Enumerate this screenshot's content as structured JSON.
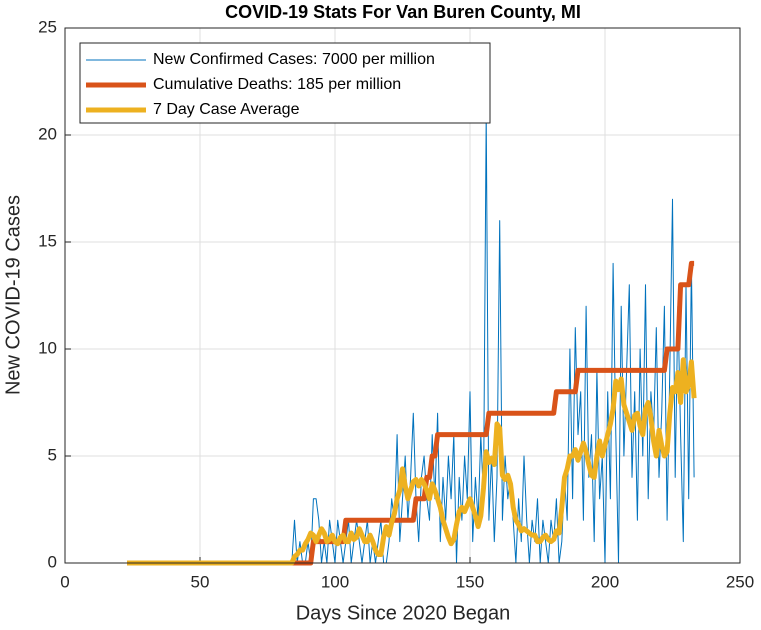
{
  "chart_data": {
    "type": "line",
    "title": "COVID-19 Stats For Van Buren County, MI",
    "x_label": "Days Since 2020 Began",
    "y_label": "New COVID-19 Cases",
    "xlim": [
      0,
      250
    ],
    "xticks": [
      0,
      50,
      100,
      150,
      200,
      250
    ],
    "ylim": [
      0,
      25
    ],
    "yticks": [
      0,
      5,
      10,
      15,
      20,
      25
    ],
    "grid": true,
    "legend": "upper left",
    "x": [
      23,
      24,
      25,
      26,
      27,
      28,
      29,
      30,
      31,
      32,
      33,
      34,
      35,
      36,
      37,
      38,
      39,
      40,
      41,
      42,
      43,
      44,
      45,
      46,
      47,
      48,
      49,
      50,
      51,
      52,
      53,
      54,
      55,
      56,
      57,
      58,
      59,
      60,
      61,
      62,
      63,
      64,
      65,
      66,
      67,
      68,
      69,
      70,
      71,
      72,
      73,
      74,
      75,
      76,
      77,
      78,
      79,
      80,
      81,
      82,
      83,
      84,
      85,
      86,
      87,
      88,
      89,
      90,
      91,
      92,
      93,
      94,
      95,
      96,
      97,
      98,
      99,
      100,
      101,
      102,
      103,
      104,
      105,
      106,
      107,
      108,
      109,
      110,
      111,
      112,
      113,
      114,
      115,
      116,
      117,
      118,
      119,
      120,
      121,
      122,
      123,
      124,
      125,
      126,
      127,
      128,
      129,
      130,
      131,
      132,
      133,
      134,
      135,
      136,
      137,
      138,
      139,
      140,
      141,
      142,
      143,
      144,
      145,
      146,
      147,
      148,
      149,
      150,
      151,
      152,
      153,
      154,
      155,
      156,
      157,
      158,
      159,
      160,
      161,
      162,
      163,
      164,
      165,
      166,
      167,
      168,
      169,
      170,
      171,
      172,
      173,
      174,
      175,
      176,
      177,
      178,
      179,
      180,
      181,
      182,
      183,
      184,
      185,
      186,
      187,
      188,
      189,
      190,
      191,
      192,
      193,
      194,
      195,
      196,
      197,
      198,
      199,
      200,
      201,
      202,
      203,
      204,
      205,
      206,
      207,
      208,
      209,
      210,
      211,
      212,
      213,
      214,
      215,
      216,
      217,
      218,
      219,
      220,
      221,
      222,
      223,
      224,
      225,
      226,
      227,
      228,
      229,
      230,
      231,
      232,
      233
    ],
    "series": [
      {
        "name": "New Confirmed Cases: 7000 per million",
        "color": "#0072bd",
        "line_width": 1,
        "values": [
          0,
          0,
          0,
          0,
          0,
          0,
          0,
          0,
          0,
          0,
          0,
          0,
          0,
          0,
          0,
          0,
          0,
          0,
          0,
          0,
          0,
          0,
          0,
          0,
          0,
          0,
          0,
          0,
          0,
          0,
          0,
          0,
          0,
          0,
          0,
          0,
          0,
          0,
          0,
          0,
          0,
          0,
          0,
          0,
          0,
          0,
          0,
          0,
          0,
          0,
          0,
          0,
          0,
          0,
          0,
          0,
          0,
          0,
          0,
          0,
          0,
          0,
          2,
          0,
          1,
          0,
          0,
          1,
          0,
          3,
          3,
          2,
          0,
          1,
          0,
          2,
          1,
          0,
          2,
          1,
          0,
          1,
          2,
          0,
          1,
          2,
          1,
          0,
          1,
          2,
          0,
          1,
          0,
          1,
          2,
          0,
          0,
          1,
          3,
          2,
          6,
          1,
          3,
          5,
          2,
          4,
          7,
          3,
          1,
          4,
          5,
          3,
          2,
          6,
          3,
          7,
          1,
          4,
          2,
          5,
          3,
          6,
          0,
          4,
          2,
          5,
          3,
          8,
          1,
          4,
          2,
          6,
          3,
          21,
          2,
          5,
          1,
          4,
          16,
          2,
          5,
          3,
          4,
          2,
          0,
          3,
          1,
          5,
          2,
          0,
          2,
          1,
          3,
          0,
          2,
          1,
          0,
          2,
          1,
          3,
          0,
          1,
          4,
          2,
          10,
          3,
          11,
          6,
          8,
          2,
          12,
          4,
          6,
          1,
          9,
          3,
          5,
          0,
          8,
          3,
          14,
          6,
          0,
          12,
          5,
          9,
          13,
          4,
          8,
          2,
          10,
          5,
          13,
          3,
          8,
          6,
          11,
          4,
          7,
          12,
          2,
          9,
          17,
          4,
          12,
          6,
          1,
          13,
          3,
          14,
          4
        ]
      },
      {
        "name": "Cumulative Deaths: 185 per million",
        "color": "#d95319",
        "line_width": 5,
        "values": [
          0,
          0,
          0,
          0,
          0,
          0,
          0,
          0,
          0,
          0,
          0,
          0,
          0,
          0,
          0,
          0,
          0,
          0,
          0,
          0,
          0,
          0,
          0,
          0,
          0,
          0,
          0,
          0,
          0,
          0,
          0,
          0,
          0,
          0,
          0,
          0,
          0,
          0,
          0,
          0,
          0,
          0,
          0,
          0,
          0,
          0,
          0,
          0,
          0,
          0,
          0,
          0,
          0,
          0,
          0,
          0,
          0,
          0,
          0,
          0,
          0,
          0,
          0,
          0,
          0,
          0,
          0,
          0,
          0,
          1,
          1,
          1,
          1,
          1,
          1,
          1,
          1,
          1,
          1,
          1,
          1,
          2,
          2,
          2,
          2,
          2,
          2,
          2,
          2,
          2,
          2,
          2,
          2,
          2,
          2,
          2,
          2,
          2,
          2,
          2,
          2,
          2,
          2,
          2,
          2,
          2,
          2,
          3,
          3,
          3,
          3,
          4,
          4,
          5,
          5,
          6,
          6,
          6,
          6,
          6,
          6,
          6,
          6,
          6,
          6,
          6,
          6,
          6,
          6,
          6,
          6,
          6,
          6,
          6,
          7,
          7,
          7,
          7,
          7,
          7,
          7,
          7,
          7,
          7,
          7,
          7,
          7,
          7,
          7,
          7,
          7,
          7,
          7,
          7,
          7,
          7,
          7,
          7,
          7,
          8,
          8,
          8,
          8,
          8,
          8,
          8,
          8,
          9,
          9,
          9,
          9,
          9,
          9,
          9,
          9,
          9,
          9,
          9,
          9,
          9,
          9,
          9,
          9,
          9,
          9,
          9,
          9,
          9,
          9,
          9,
          9,
          9,
          9,
          9,
          9,
          9,
          9,
          9,
          9,
          9,
          10,
          10,
          10,
          10,
          10,
          13,
          13,
          13,
          13,
          14,
          14
        ]
      },
      {
        "name": "7 Day Case Average",
        "color": "#edb120",
        "line_width": 5,
        "values": [
          0,
          0,
          0,
          0,
          0,
          0,
          0,
          0,
          0,
          0,
          0,
          0,
          0,
          0,
          0,
          0,
          0,
          0,
          0,
          0,
          0,
          0,
          0,
          0,
          0,
          0,
          0,
          0,
          0,
          0,
          0,
          0,
          0,
          0,
          0,
          0,
          0,
          0,
          0,
          0,
          0,
          0,
          0,
          0,
          0,
          0,
          0,
          0,
          0,
          0,
          0,
          0,
          0,
          0,
          0,
          0,
          0,
          0,
          0,
          0,
          0,
          0,
          0.3,
          0.4,
          0.6,
          0.6,
          0.9,
          1.1,
          1.4,
          1.3,
          1.0,
          1.3,
          1.6,
          1.4,
          1.0,
          1.1,
          1.3,
          1.0,
          0.9,
          1.2,
          1.3,
          1.0,
          1.0,
          1.4,
          1.1,
          1.2,
          1.6,
          1.3,
          1.0,
          1.0,
          1.3,
          1.0,
          0.6,
          0.4,
          0.4,
          1.2,
          1.7,
          1.3,
          1.9,
          2.3,
          3.0,
          3.4,
          4.4,
          3.6,
          3.0,
          3.4,
          3.8,
          3.9,
          3.6,
          3.9,
          3.7,
          3.4,
          3.0,
          3.7,
          3.4,
          3.0,
          2.6,
          2.0,
          1.6,
          1.2,
          0.9,
          1.1,
          1.8,
          2.4,
          2.6,
          2.4,
          2.7,
          3.0,
          2.6,
          2.2,
          1.7,
          2.2,
          3.5,
          5.2,
          4.7,
          4.9,
          4.6,
          6.5,
          6.3,
          4.1,
          3.9,
          4.1,
          3.7,
          2.6,
          2.0,
          1.8,
          1.5,
          1.6,
          1.5,
          1.4,
          1.3,
          1.3,
          1.0,
          1.0,
          1.2,
          1.3,
          1.1,
          1.0,
          1.1,
          1.5,
          1.4,
          2.6,
          4.0,
          4.4,
          5.0,
          5.0,
          5.3,
          4.8,
          5.2,
          5.6,
          5.2,
          4.6,
          4.1,
          4.0,
          5.0,
          5.7,
          5.0,
          5.5,
          6.0,
          6.5,
          7.2,
          8.5,
          8.1,
          8.6,
          7.4,
          7.0,
          6.6,
          6.2,
          6.9,
          7.0,
          6.4,
          6.0,
          7.2,
          7.5,
          6.8,
          5.7,
          5.0,
          6.2,
          5.5,
          5.0,
          5.2,
          7.0,
          8.2,
          8.0,
          8.9,
          7.5,
          9.5,
          8.0,
          8.3,
          9.4,
          7.7
        ]
      }
    ]
  }
}
